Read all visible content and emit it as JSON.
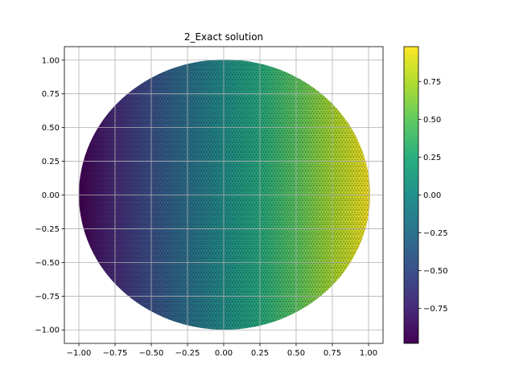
{
  "chart_data": {
    "type": "heatmap",
    "title": "2_Exact solution",
    "xlabel": "",
    "ylabel": "",
    "xlim": [
      -1.1,
      1.1
    ],
    "ylim": [
      -1.1,
      1.1
    ],
    "x_ticks": [
      "−1.00",
      "−0.75",
      "−0.50",
      "−0.25",
      "0.00",
      "0.25",
      "0.50",
      "0.75",
      "1.00"
    ],
    "y_ticks": [
      "1.00",
      "0.75",
      "0.50",
      "0.25",
      "0.00",
      "−0.25",
      "−0.50",
      "−0.75",
      "−1.00"
    ],
    "grid": true,
    "domain": "unit disk",
    "mesh": "triangular",
    "field": "u(x, y) ≈ x",
    "colormap": "viridis",
    "colorbar": {
      "range": [
        -0.98,
        0.98
      ],
      "ticks": [
        "0.75",
        "0.50",
        "0.25",
        "0.00",
        "−0.25",
        "−0.50",
        "−0.75"
      ]
    }
  }
}
